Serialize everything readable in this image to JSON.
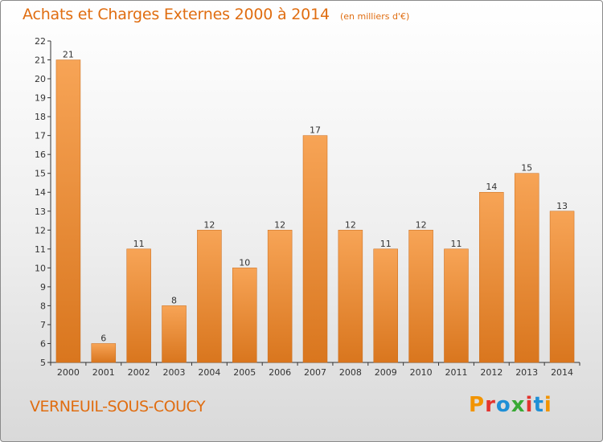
{
  "page": {
    "title": "Achats et Charges Externes 2000 à 2014",
    "unit": "(en milliers d'€)",
    "commune": "VERNEUIL-SOUS-COUCY",
    "brand": "Proxiti"
  },
  "colors": {
    "title": "#e06d10",
    "bar_top": "#f7a456",
    "bar_bottom": "#d9761e",
    "axis": "#333333",
    "brand_letters": [
      "#f29400",
      "#e3342f",
      "#1f8fd6",
      "#3aa935",
      "#e3342f",
      "#1f8fd6",
      "#f29400"
    ]
  },
  "chart_data": {
    "type": "bar",
    "title": "Achats et Charges Externes 2000 à 2014",
    "subtitle": "(en milliers d'€)",
    "xlabel": "",
    "ylabel": "",
    "categories": [
      "2000",
      "2001",
      "2002",
      "2003",
      "2004",
      "2005",
      "2006",
      "2007",
      "2008",
      "2009",
      "2010",
      "2011",
      "2012",
      "2013",
      "2014"
    ],
    "values": [
      21,
      6,
      11,
      8,
      12,
      10,
      12,
      17,
      12,
      11,
      12,
      11,
      14,
      15,
      13
    ],
    "data_labels": [
      "21",
      "6",
      "11",
      "8",
      "12",
      "10",
      "12",
      "17",
      "12",
      "11",
      "12",
      "11",
      "14",
      "15",
      "13"
    ],
    "ylim": [
      5,
      22
    ],
    "yticks": [
      "5",
      "6",
      "7",
      "8",
      "9",
      "10",
      "11",
      "12",
      "13",
      "14",
      "15",
      "16",
      "17",
      "18",
      "19",
      "20",
      "21",
      "22"
    ],
    "grid": false,
    "legend": "none"
  }
}
